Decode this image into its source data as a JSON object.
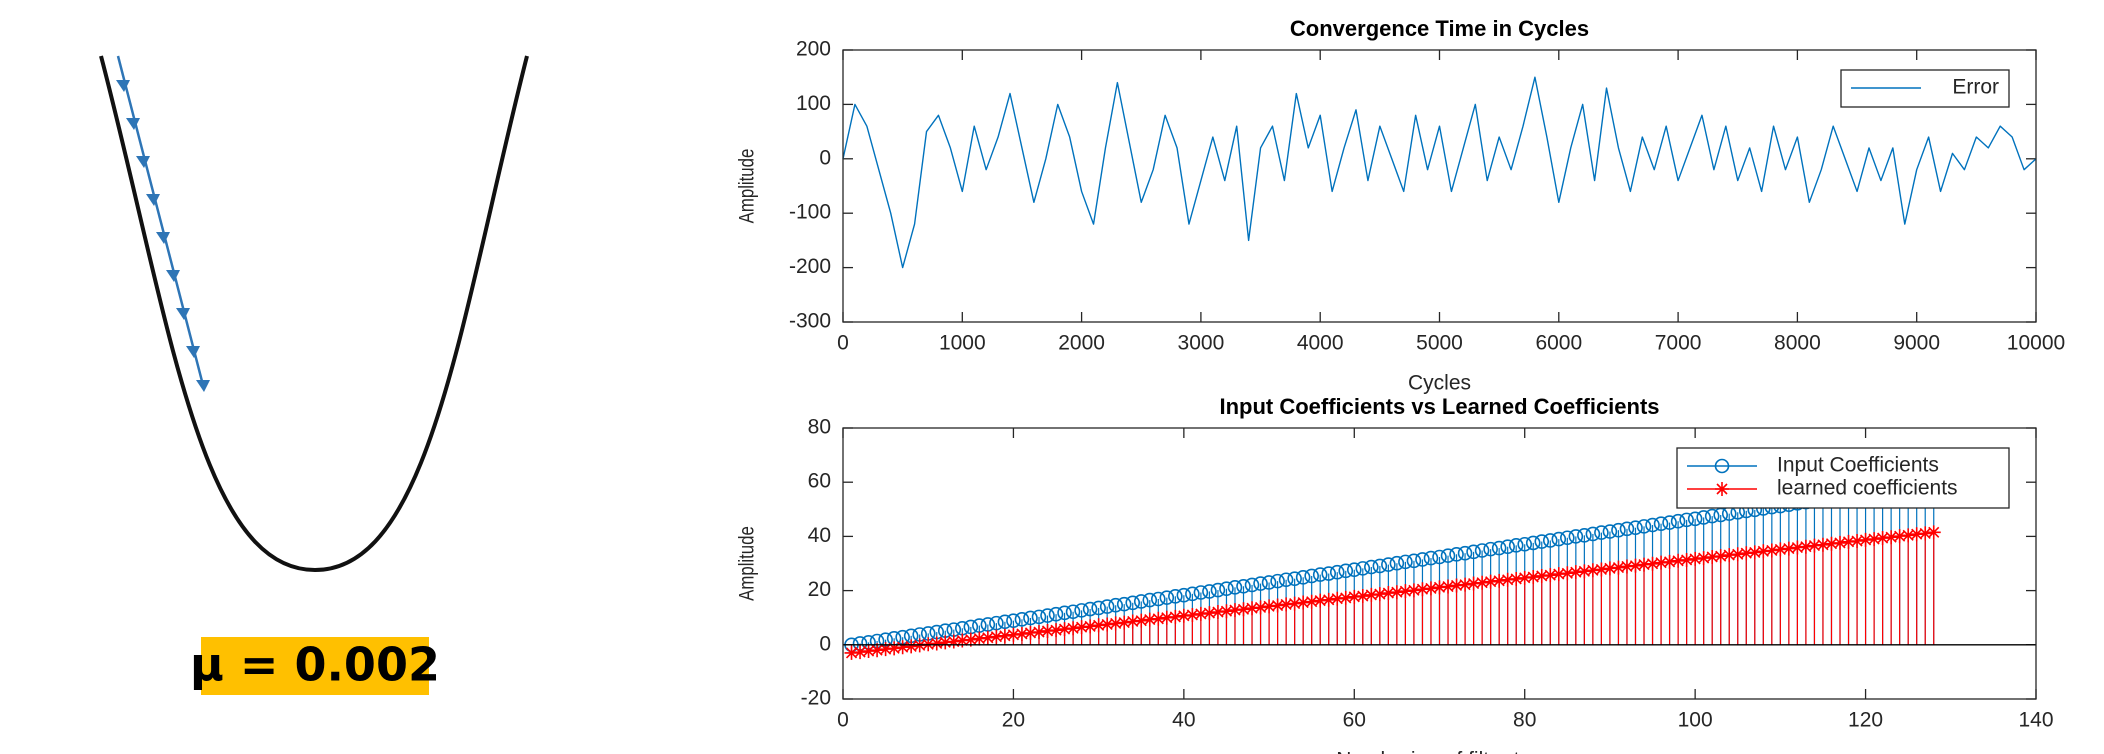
{
  "diagram": {
    "label": "μ = 0.002"
  },
  "chart_data": [
    {
      "type": "line",
      "title": "Convergence Time in Cycles",
      "xlabel": "Cycles",
      "ylabel": "Amplitude",
      "x": [
        0,
        100,
        200,
        300,
        400,
        500,
        600,
        700,
        800,
        900,
        1000,
        1100,
        1200,
        1300,
        1400,
        1500,
        1600,
        1700,
        1800,
        1900,
        2000,
        2100,
        2200,
        2300,
        2400,
        2500,
        2600,
        2700,
        2800,
        2900,
        3000,
        3100,
        3200,
        3300,
        3400,
        3500,
        3600,
        3700,
        3800,
        3900,
        4000,
        4100,
        4200,
        4300,
        4400,
        4500,
        4600,
        4700,
        4800,
        4900,
        5000,
        5100,
        5200,
        5300,
        5400,
        5500,
        5600,
        5700,
        5800,
        5900,
        6000,
        6100,
        6200,
        6300,
        6400,
        6500,
        6600,
        6700,
        6800,
        6900,
        7000,
        7100,
        7200,
        7300,
        7400,
        7500,
        7600,
        7700,
        7800,
        7900,
        8000,
        8100,
        8200,
        8300,
        8400,
        8500,
        8600,
        8700,
        8800,
        8900,
        9000,
        9100,
        9200,
        9300,
        9400,
        9500,
        9600,
        9700,
        9800,
        9900,
        10000
      ],
      "series": [
        {
          "name": "Error",
          "color": "#0072bd",
          "values": [
            0,
            100,
            60,
            -20,
            -100,
            -200,
            -120,
            50,
            80,
            20,
            -60,
            60,
            -20,
            40,
            120,
            20,
            -80,
            0,
            100,
            40,
            -60,
            -120,
            20,
            140,
            30,
            -80,
            -20,
            80,
            20,
            -120,
            -40,
            40,
            -40,
            60,
            -150,
            20,
            60,
            -40,
            120,
            20,
            80,
            -60,
            20,
            90,
            -40,
            60,
            0,
            -60,
            80,
            -20,
            60,
            -60,
            20,
            100,
            -40,
            40,
            -20,
            60,
            150,
            40,
            -80,
            20,
            100,
            -40,
            130,
            20,
            -60,
            40,
            -20,
            60,
            -40,
            20,
            80,
            -20,
            60,
            -40,
            20,
            -60,
            60,
            -20,
            40,
            -80,
            -20,
            60,
            0,
            -60,
            20,
            -40,
            20,
            -120,
            -20,
            40,
            -60,
            10,
            -20,
            40,
            20,
            60,
            40,
            -20,
            0
          ]
        }
      ],
      "xlim": [
        0,
        10000
      ],
      "xticks": [
        0,
        1000,
        2000,
        3000,
        4000,
        5000,
        6000,
        7000,
        8000,
        9000,
        10000
      ],
      "ylim": [
        -300,
        200
      ],
      "yticks": [
        -300,
        -200,
        -100,
        0,
        100,
        200
      ],
      "grid": false,
      "legend": "northeast"
    },
    {
      "type": "stem",
      "title": "Input Coefficients vs Learned Coefficients",
      "xlabel": "Numbering of filter tap",
      "ylabel": "Amplitude",
      "x": [
        1,
        2,
        3,
        4,
        5,
        6,
        7,
        8,
        9,
        10,
        11,
        12,
        13,
        14,
        15,
        16,
        17,
        18,
        19,
        20,
        21,
        22,
        23,
        24,
        25,
        26,
        27,
        28,
        29,
        30,
        31,
        32,
        33,
        34,
        35,
        36,
        37,
        38,
        39,
        40,
        41,
        42,
        43,
        44,
        45,
        46,
        47,
        48,
        49,
        50,
        51,
        52,
        53,
        54,
        55,
        56,
        57,
        58,
        59,
        60,
        61,
        62,
        63,
        64,
        65,
        66,
        67,
        68,
        69,
        70,
        71,
        72,
        73,
        74,
        75,
        76,
        77,
        78,
        79,
        80,
        81,
        82,
        83,
        84,
        85,
        86,
        87,
        88,
        89,
        90,
        91,
        92,
        93,
        94,
        95,
        96,
        97,
        98,
        99,
        100,
        101,
        102,
        103,
        104,
        105,
        106,
        107,
        108,
        109,
        110,
        111,
        112,
        113,
        114,
        115,
        116,
        117,
        118,
        119,
        120,
        121,
        122,
        123,
        124,
        125,
        126,
        127,
        128
      ],
      "series": [
        {
          "name": "Input Coefficients",
          "color": "#0072bd",
          "marker": "o",
          "values": [
            0,
            0.5,
            0.9,
            1.4,
            1.9,
            2.4,
            2.8,
            3.3,
            3.8,
            4.2,
            4.7,
            5.2,
            5.6,
            6.1,
            6.6,
            7.1,
            7.5,
            8.0,
            8.5,
            8.9,
            9.4,
            9.9,
            10.3,
            10.8,
            11.3,
            11.8,
            12.2,
            12.7,
            13.2,
            13.6,
            14.1,
            14.6,
            15.0,
            15.5,
            16.0,
            16.5,
            16.9,
            17.4,
            17.9,
            18.3,
            18.8,
            19.3,
            19.7,
            20.2,
            20.7,
            21.2,
            21.6,
            22.1,
            22.6,
            23.0,
            23.5,
            24.0,
            24.4,
            24.9,
            25.4,
            25.9,
            26.3,
            26.8,
            27.3,
            27.7,
            28.2,
            28.7,
            29.1,
            29.6,
            30.1,
            30.6,
            31.0,
            31.5,
            32.0,
            32.4,
            32.9,
            33.4,
            33.8,
            34.3,
            34.8,
            35.3,
            35.7,
            36.2,
            36.7,
            37.1,
            37.6,
            38.1,
            38.5,
            39.0,
            39.5,
            40.0,
            40.4,
            40.9,
            41.4,
            41.8,
            42.3,
            42.8,
            43.2,
            43.7,
            44.2,
            44.7,
            45.1,
            45.6,
            46.1,
            46.5,
            47.0,
            47.5,
            47.9,
            48.4,
            48.9,
            49.4,
            49.8,
            50.3,
            50.8,
            51.2,
            51.7,
            52.2,
            52.6,
            53.1,
            53.6,
            54.1,
            54.5,
            55.0,
            55.5,
            55.9,
            56.4,
            56.9,
            57.3,
            57.8,
            58.3,
            58.8,
            59.2,
            59.7
          ]
        },
        {
          "name": "learned coefficients",
          "color": "#ff0000",
          "marker": "*",
          "values": [
            -3.0,
            -2.7,
            -2.3,
            -2.0,
            -1.6,
            -1.3,
            -0.9,
            -0.6,
            -0.2,
            0.2,
            0.5,
            0.9,
            1.2,
            1.6,
            1.9,
            2.3,
            2.6,
            3.0,
            3.3,
            3.7,
            4.0,
            4.4,
            4.7,
            5.1,
            5.4,
            5.8,
            6.1,
            6.5,
            6.8,
            7.2,
            7.5,
            7.9,
            8.2,
            8.6,
            8.9,
            9.3,
            9.6,
            10.0,
            10.3,
            10.7,
            11.0,
            11.4,
            11.7,
            12.1,
            12.4,
            12.8,
            13.1,
            13.5,
            13.8,
            14.2,
            14.5,
            14.9,
            15.2,
            15.6,
            15.9,
            16.3,
            16.6,
            17.0,
            17.3,
            17.7,
            18.0,
            18.4,
            18.7,
            19.1,
            19.4,
            19.8,
            20.1,
            20.5,
            20.8,
            21.2,
            21.5,
            21.9,
            22.2,
            22.6,
            22.9,
            23.3,
            23.6,
            24.0,
            24.3,
            24.7,
            25.0,
            25.4,
            25.7,
            26.1,
            26.4,
            26.8,
            27.1,
            27.5,
            27.8,
            28.2,
            28.5,
            28.9,
            29.2,
            29.6,
            29.9,
            30.3,
            30.6,
            31.0,
            31.3,
            31.7,
            32.0,
            32.4,
            32.7,
            33.1,
            33.4,
            33.8,
            34.1,
            34.5,
            34.8,
            35.2,
            35.5,
            35.9,
            36.2,
            36.6,
            36.9,
            37.3,
            37.6,
            38.0,
            38.3,
            38.7,
            39.0,
            39.4,
            39.7,
            40.1,
            40.4,
            40.8,
            41.1,
            41.5
          ]
        }
      ],
      "xlim": [
        0,
        140
      ],
      "xticks": [
        0,
        20,
        40,
        60,
        80,
        100,
        120,
        140
      ],
      "ylim": [
        -20,
        80
      ],
      "yticks": [
        -20,
        0,
        20,
        40,
        60,
        80
      ],
      "grid": false,
      "legend": "northeast"
    }
  ]
}
